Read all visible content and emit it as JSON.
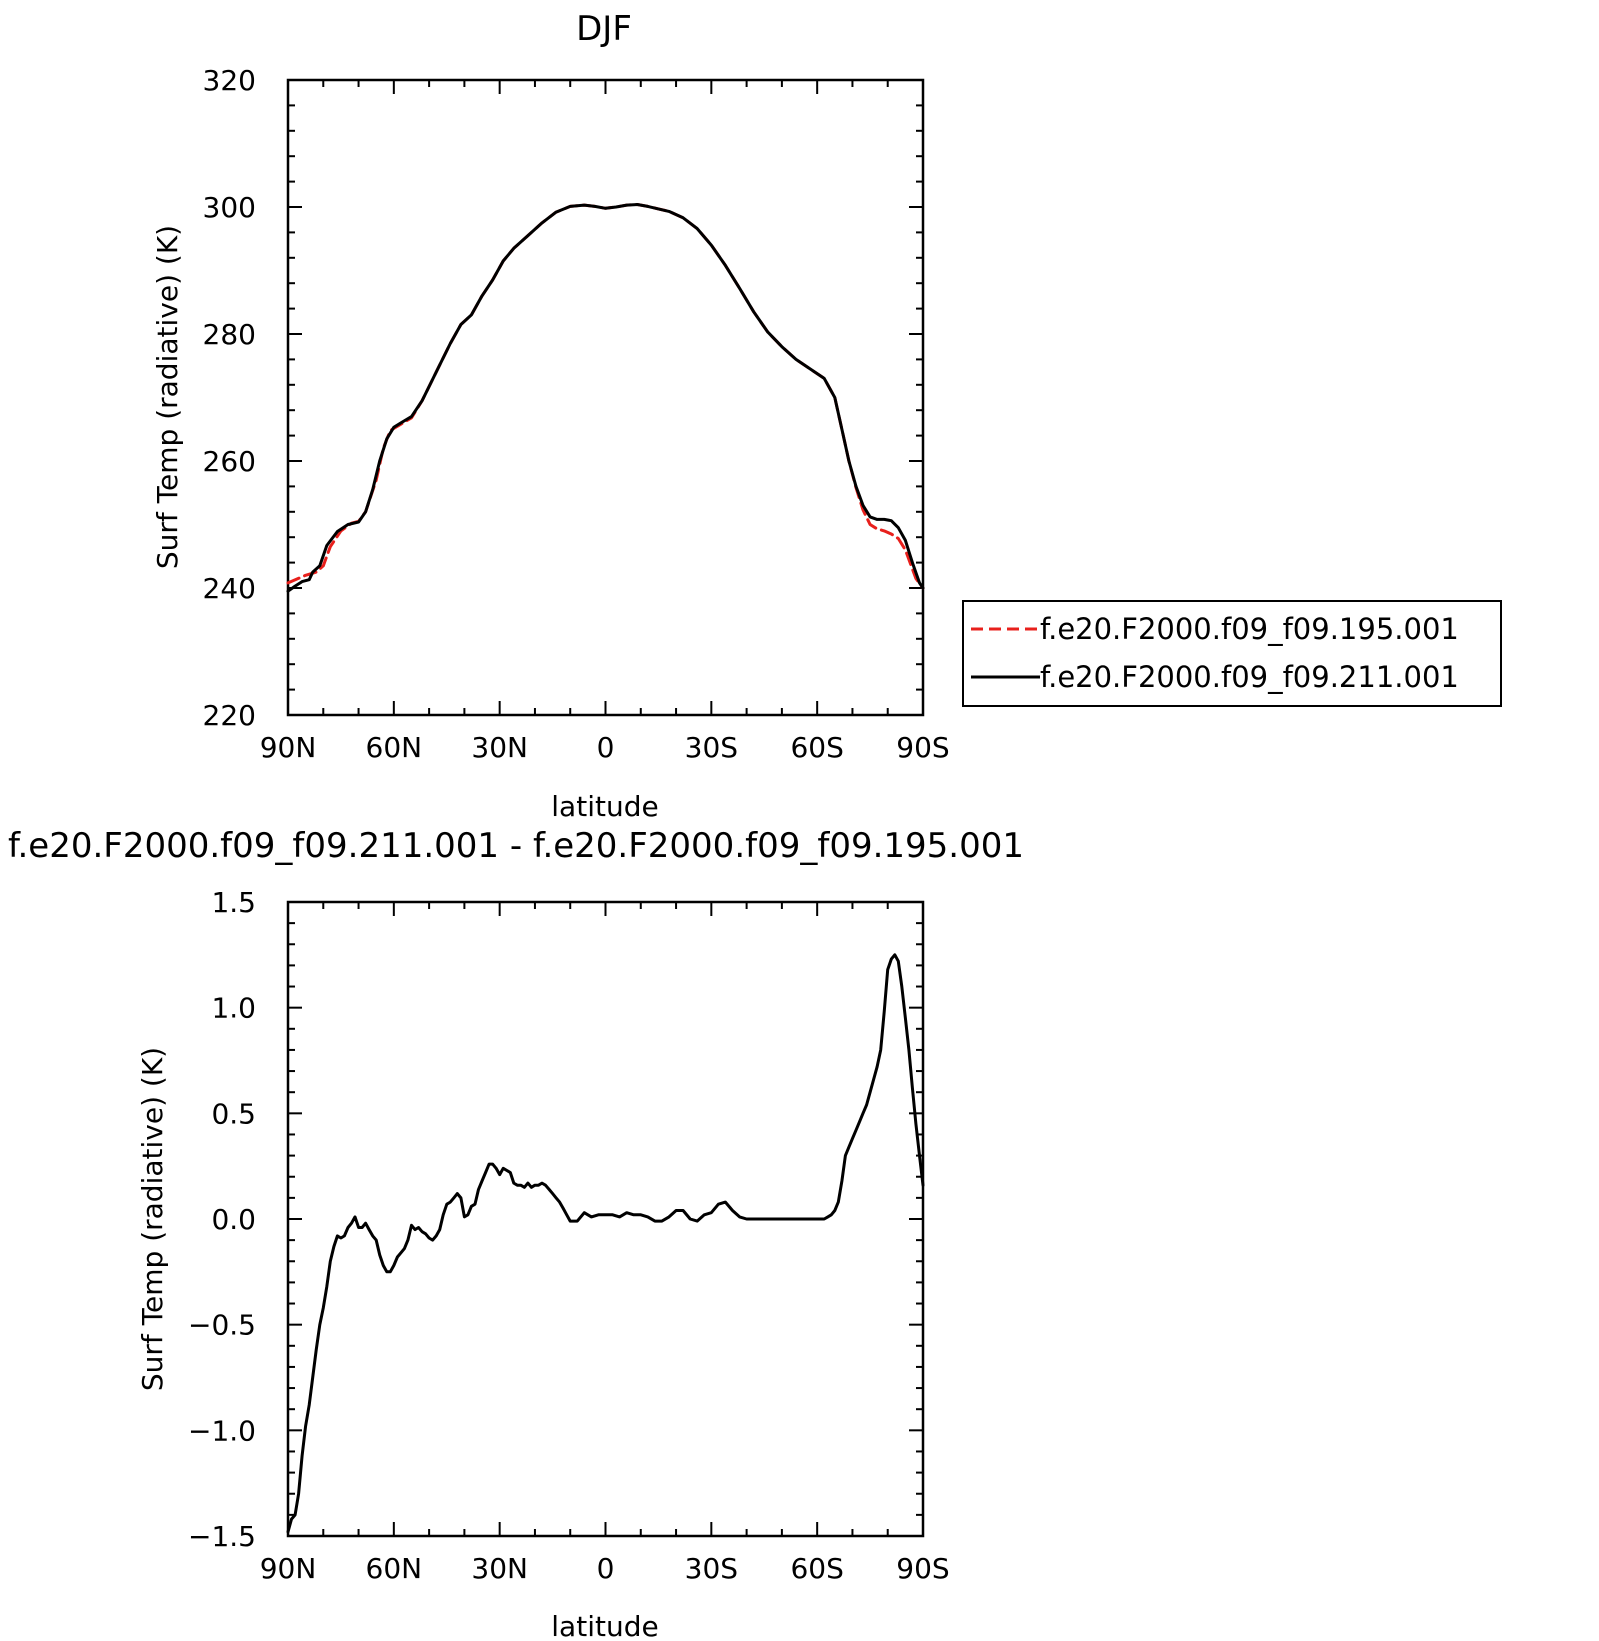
{
  "chart_data": [
    {
      "type": "line",
      "title": "DJF",
      "xlabel": "latitude",
      "ylabel": "Surf Temp (radiative) (K)",
      "xlim": [
        -90,
        90
      ],
      "ylim": [
        220,
        320
      ],
      "x_tick_values": [
        -90,
        -60,
        -30,
        0,
        30,
        60,
        90
      ],
      "x_tick_labels": [
        "90N",
        "60N",
        "30N",
        "0",
        "30S",
        "60S",
        "90S"
      ],
      "y_ticks": [
        220,
        240,
        260,
        280,
        300,
        320
      ],
      "y_tick_labels": [
        "220",
        "240",
        "260",
        "280",
        "300",
        "320"
      ],
      "legend": "right",
      "series": [
        {
          "name": "f.e20.F2000.f09_f09.195.001",
          "color": "#e8201c",
          "dash": "dashed",
          "x": [
            -90,
            -85,
            -82,
            -80,
            -78,
            -75,
            -72,
            -70,
            -68,
            -65,
            -63,
            -61,
            -58,
            -55,
            -52,
            -48,
            -44,
            -41,
            -38,
            -35,
            -32,
            -29,
            -26,
            -22,
            -18,
            -14,
            -10,
            -6,
            -3,
            0,
            3,
            6,
            9,
            12,
            15,
            18,
            22,
            26,
            30,
            34,
            38,
            42,
            46,
            50,
            54,
            58,
            62,
            65,
            67,
            69,
            71,
            73,
            75,
            77,
            79,
            81,
            83,
            85,
            87,
            88,
            90
          ],
          "y": [
            240.8,
            242.0,
            242.5,
            243.5,
            246.5,
            249.0,
            250.2,
            250.5,
            252.0,
            257.0,
            262.0,
            264.8,
            265.8,
            266.8,
            269.5,
            274.0,
            278.5,
            281.5,
            283.0,
            286.0,
            288.5,
            291.5,
            293.5,
            295.5,
            297.5,
            299.2,
            300.1,
            300.3,
            300.1,
            299.8,
            300.0,
            300.3,
            300.4,
            300.1,
            299.7,
            299.3,
            298.3,
            296.6,
            294.0,
            290.8,
            287.2,
            283.5,
            280.3,
            278.0,
            276.0,
            274.5,
            273.0,
            270.0,
            265.0,
            260.0,
            255.8,
            252.3,
            250.0,
            249.3,
            249.0,
            248.5,
            247.8,
            246.0,
            243.0,
            241.5,
            240.0
          ]
        },
        {
          "name": "f.e20.F2000.f09_f09.211.001",
          "color": "#000000",
          "dash": "solid",
          "x": [
            -90,
            -88,
            -86,
            -84,
            -83,
            -81,
            -79,
            -76,
            -73,
            -70,
            -68,
            -66,
            -64,
            -62,
            -60,
            -58,
            -55,
            -52,
            -48,
            -44,
            -41,
            -38,
            -35,
            -32,
            -29,
            -26,
            -22,
            -18,
            -14,
            -10,
            -6,
            -3,
            0,
            3,
            6,
            9,
            12,
            15,
            18,
            22,
            26,
            30,
            34,
            38,
            42,
            46,
            50,
            54,
            58,
            62,
            65,
            67,
            69,
            71,
            73,
            75,
            77,
            79,
            81,
            83,
            85,
            87,
            89,
            90
          ],
          "y": [
            239.5,
            240.3,
            241.0,
            241.3,
            242.5,
            243.5,
            246.7,
            248.9,
            250.0,
            250.4,
            252.0,
            255.5,
            260.0,
            263.5,
            265.3,
            266.0,
            267.0,
            269.5,
            274.0,
            278.5,
            281.5,
            283.0,
            286.0,
            288.5,
            291.5,
            293.5,
            295.5,
            297.5,
            299.2,
            300.1,
            300.3,
            300.1,
            299.8,
            300.0,
            300.3,
            300.4,
            300.1,
            299.7,
            299.3,
            298.3,
            296.6,
            294.0,
            290.8,
            287.2,
            283.5,
            280.3,
            278.0,
            276.0,
            274.5,
            273.0,
            270.0,
            265.0,
            260.0,
            256.0,
            253.0,
            251.2,
            250.8,
            250.8,
            250.6,
            249.5,
            247.5,
            244.0,
            240.8,
            240.0
          ]
        }
      ]
    },
    {
      "type": "line",
      "title": "f.e20.F2000.f09_f09.211.001 - f.e20.F2000.f09_f09.195.001",
      "xlabel": "latitude",
      "ylabel": "Surf Temp (radiative) (K)",
      "xlim": [
        -90,
        90
      ],
      "ylim": [
        -1.5,
        1.5
      ],
      "x_tick_values": [
        -90,
        -60,
        -30,
        0,
        30,
        60,
        90
      ],
      "x_tick_labels": [
        "90N",
        "60N",
        "30N",
        "0",
        "30S",
        "60S",
        "90S"
      ],
      "y_ticks": [
        -1.5,
        -1.0,
        -0.5,
        0.0,
        0.5,
        1.0,
        1.5
      ],
      "y_tick_labels": [
        "−1.5",
        "−1.0",
        "−0.5",
        "0.0",
        "0.5",
        "1.0",
        "1.5"
      ],
      "series": [
        {
          "color": "#000000",
          "dash": "solid",
          "x": [
            -90,
            -89,
            -88,
            -87,
            -86,
            -85,
            -84,
            -83,
            -82,
            -81,
            -80,
            -79,
            -78,
            -77,
            -76,
            -75,
            -74,
            -73,
            -72,
            -71,
            -70,
            -69,
            -68,
            -67,
            -66,
            -65,
            -64,
            -63,
            -62,
            -61,
            -60,
            -59,
            -58,
            -57,
            -56,
            -55,
            -54,
            -53,
            -52,
            -51,
            -50,
            -49,
            -48,
            -47,
            -46,
            -45,
            -44,
            -43,
            -42,
            -41,
            -40,
            -39,
            -38,
            -37,
            -36,
            -35,
            -34,
            -33,
            -32,
            -31,
            -30,
            -29,
            -28,
            -27,
            -26,
            -25,
            -24,
            -23,
            -22,
            -21,
            -20,
            -19,
            -18,
            -17,
            -16,
            -15,
            -14,
            -13,
            -12,
            -11,
            -10,
            -8,
            -6,
            -4,
            -2,
            0,
            2,
            4,
            6,
            8,
            10,
            12,
            14,
            16,
            18,
            20,
            22,
            24,
            26,
            28,
            30,
            32,
            34,
            36,
            38,
            40,
            42,
            45,
            50,
            55,
            60,
            62,
            63,
            64,
            65,
            66,
            67,
            68,
            69,
            70,
            71,
            72,
            73,
            74,
            75,
            76,
            77,
            78,
            79,
            80,
            81,
            82,
            83,
            84,
            85,
            86,
            87,
            88,
            89,
            90
          ],
          "y": [
            -1.48,
            -1.42,
            -1.4,
            -1.3,
            -1.12,
            -0.98,
            -0.88,
            -0.75,
            -0.62,
            -0.5,
            -0.42,
            -0.32,
            -0.2,
            -0.13,
            -0.08,
            -0.09,
            -0.08,
            -0.04,
            -0.02,
            0.01,
            -0.04,
            -0.04,
            -0.02,
            -0.05,
            -0.08,
            -0.1,
            -0.17,
            -0.22,
            -0.25,
            -0.25,
            -0.22,
            -0.18,
            -0.16,
            -0.14,
            -0.1,
            -0.03,
            -0.05,
            -0.04,
            -0.06,
            -0.07,
            -0.09,
            -0.1,
            -0.08,
            -0.05,
            0.02,
            0.07,
            0.08,
            0.1,
            0.12,
            0.1,
            0.01,
            0.02,
            0.06,
            0.07,
            0.14,
            0.18,
            0.22,
            0.26,
            0.26,
            0.24,
            0.21,
            0.24,
            0.23,
            0.22,
            0.17,
            0.16,
            0.16,
            0.15,
            0.17,
            0.15,
            0.16,
            0.16,
            0.17,
            0.16,
            0.14,
            0.12,
            0.1,
            0.08,
            0.05,
            0.02,
            -0.01,
            -0.01,
            0.03,
            0.01,
            0.02,
            0.02,
            0.02,
            0.01,
            0.03,
            0.02,
            0.02,
            0.01,
            -0.01,
            -0.01,
            0.01,
            0.04,
            0.04,
            0.0,
            -0.01,
            0.02,
            0.03,
            0.07,
            0.08,
            0.04,
            0.01,
            0.0,
            0.0,
            0.0,
            0.0,
            0.0,
            0.0,
            0.0,
            0.01,
            0.02,
            0.04,
            0.08,
            0.18,
            0.3,
            0.34,
            0.38,
            0.42,
            0.46,
            0.5,
            0.54,
            0.6,
            0.66,
            0.72,
            0.8,
            0.98,
            1.18,
            1.23,
            1.25,
            1.22,
            1.1,
            0.95,
            0.8,
            0.62,
            0.45,
            0.3,
            0.16
          ]
        }
      ]
    }
  ]
}
